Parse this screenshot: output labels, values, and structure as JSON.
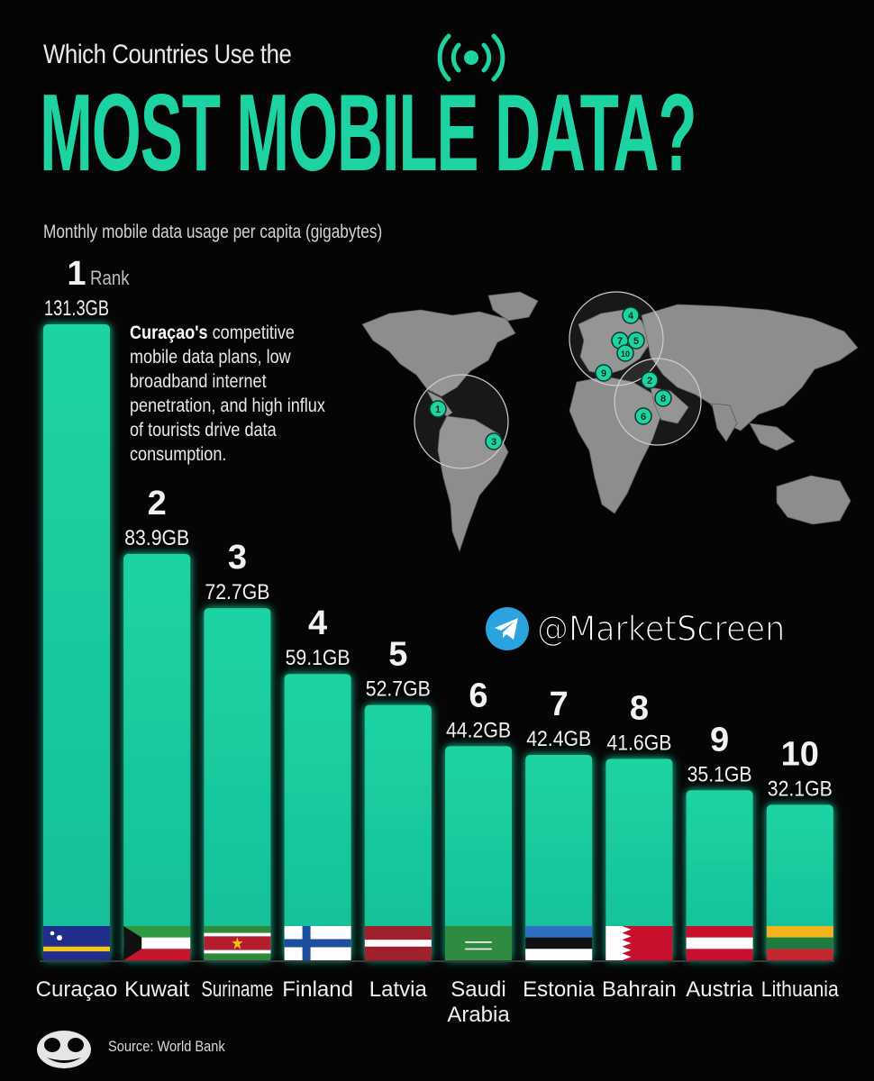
{
  "header": {
    "pre_title": "Which Countries Use the",
    "title": "MOST MOBILE DATA?",
    "subtitle": "Monthly mobile data usage per capita (gigabytes)",
    "signal_icon": "broadcast-signal-icon"
  },
  "rank_caption": "Rank",
  "annotation": {
    "bold": "Curaçao's",
    "text": " competitive mobile data plans, low broadband internet penetration, and high influx of tourists drive data consumption."
  },
  "map": {
    "markers": [
      "1",
      "2",
      "3",
      "4",
      "5",
      "6",
      "7",
      "8",
      "9",
      "10"
    ]
  },
  "watermark": {
    "handle": "@MarketScreen",
    "icon": "telegram-icon"
  },
  "source": "Source: World Bank",
  "colors": {
    "accent": "#1ed3a2",
    "bar": "#17c9a0",
    "background": "#050505"
  },
  "chart_data": {
    "type": "bar",
    "unit": "GB",
    "categories": [
      [
        "Curaçao"
      ],
      [
        "Kuwait"
      ],
      [
        "Suriname"
      ],
      [
        "Finland"
      ],
      [
        "Latvia"
      ],
      [
        "Saudi",
        "Arabia"
      ],
      [
        "Estonia"
      ],
      [
        "Bahrain"
      ],
      [
        "Austria"
      ],
      [
        "Lithuania"
      ]
    ],
    "ranks": [
      "1",
      "2",
      "3",
      "4",
      "5",
      "6",
      "7",
      "8",
      "9",
      "10"
    ],
    "values": [
      131.3,
      83.9,
      72.7,
      59.1,
      52.7,
      44.2,
      42.4,
      41.6,
      35.1,
      32.1
    ],
    "value_labels": [
      "131.3GB",
      "83.9GB",
      "72.7GB",
      "59.1GB",
      "52.7GB",
      "44.2GB",
      "42.4GB",
      "41.6GB",
      "35.1GB",
      "32.1GB"
    ],
    "flags": [
      "curacao",
      "kuwait",
      "suriname",
      "finland",
      "latvia",
      "saudi-arabia",
      "estonia",
      "bahrain",
      "austria",
      "lithuania"
    ],
    "ylim": [
      0,
      131.3
    ],
    "grid": false,
    "legend": "none"
  }
}
